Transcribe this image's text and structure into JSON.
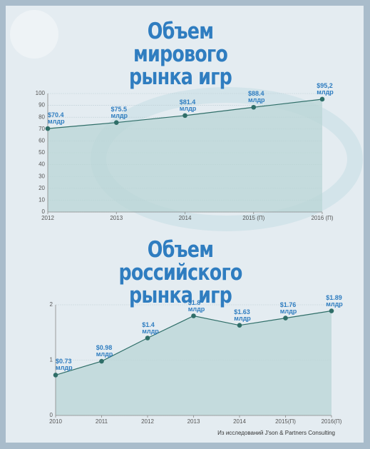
{
  "chart_data": [
    {
      "type": "area",
      "title": "Объем мирового рынка игр",
      "categories": [
        "2012",
        "2013",
        "2014",
        "2015 (П)",
        "2016 (П)"
      ],
      "values": [
        70.4,
        75.5,
        81.4,
        88.4,
        95.2
      ],
      "value_labels": [
        "$70.4\nмлдр",
        "$75.5\nмлдр",
        "$81.4\nмлдр",
        "$88.4\nмлдр",
        "$95,2\nмлдр"
      ],
      "ylim": [
        0,
        100
      ],
      "yticks": [
        0,
        10,
        20,
        30,
        40,
        50,
        60,
        70,
        80,
        90,
        100
      ],
      "grid": true,
      "color": "#2f6e68"
    },
    {
      "type": "area",
      "title": "Объем российского рынка игр",
      "categories": [
        "2010",
        "2011",
        "2012",
        "2013",
        "2014",
        "2015(П)",
        "2016(П)"
      ],
      "values": [
        0.73,
        0.98,
        1.4,
        1.8,
        1.63,
        1.76,
        1.89
      ],
      "value_labels": [
        "$0.73\nмлдр",
        "$0.98\nмлдр",
        "$1.4\nмлдр",
        "$1.8\nмлдр",
        "$1.63\nмлдр",
        "$1.76\nмлдр",
        "$1.89\nмлдр"
      ],
      "ylim": [
        0,
        2
      ],
      "yticks": [
        0,
        1,
        2
      ],
      "grid": true,
      "color": "#2f6e68"
    }
  ],
  "source": "Из исследований J'son & Partners Consulting"
}
